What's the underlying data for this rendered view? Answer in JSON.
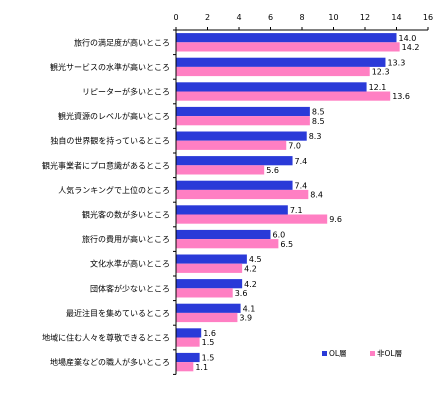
{
  "chart_data": {
    "type": "bar",
    "orientation": "horizontal",
    "categories": [
      "旅行の満足度が高いところ",
      "観光サービスの水準が高いところ",
      "リピーターが多いところ",
      "観光資源のレベルが高いところ",
      "独自の世界観を持っているところ",
      "観光事業者にプロ意識があるところ",
      "人気ランキングで上位のところ",
      "観光客の数が多いところ",
      "旅行の費用が高いところ",
      "文化水準が高いところ",
      "団体客が少ないところ",
      "最近注目を集めているところ",
      "地域に住む人々を尊敬できるところ",
      "地場産業などの職人が多いところ"
    ],
    "series": [
      {
        "name": "OL層",
        "color": "#2a3ad8",
        "values": [
          14.0,
          13.3,
          12.1,
          8.5,
          8.3,
          7.4,
          7.4,
          7.1,
          6.0,
          4.5,
          4.2,
          4.1,
          1.6,
          1.5
        ],
        "value_labels": [
          "14.0",
          "13.3",
          "12.1",
          "8.5",
          "8.3",
          "7.4",
          "7.4",
          "7.1",
          "6.0",
          "4.5",
          "4.2",
          "4.1",
          "1.6",
          "1.5"
        ]
      },
      {
        "name": "非OL層",
        "color": "#ff7fc3",
        "values": [
          14.2,
          12.3,
          13.6,
          8.5,
          7.0,
          5.6,
          8.4,
          9.6,
          6.5,
          4.2,
          3.6,
          3.9,
          1.5,
          1.1
        ],
        "value_labels": [
          "14.2",
          "12.3",
          "13.6",
          "8.5",
          "7.0",
          "5.6",
          "8.4",
          "9.6",
          "6.5",
          "4.2",
          "3.6",
          "3.9",
          "1.5",
          "1.1"
        ]
      }
    ],
    "xlim": [
      0,
      16
    ],
    "x_ticks": [
      "0",
      "2",
      "4",
      "6",
      "8",
      "10",
      "12",
      "14",
      "16"
    ],
    "x_axis_position": "top",
    "grid": false,
    "legend_position": "bottom-right",
    "title": "",
    "xlabel": "",
    "ylabel": ""
  }
}
